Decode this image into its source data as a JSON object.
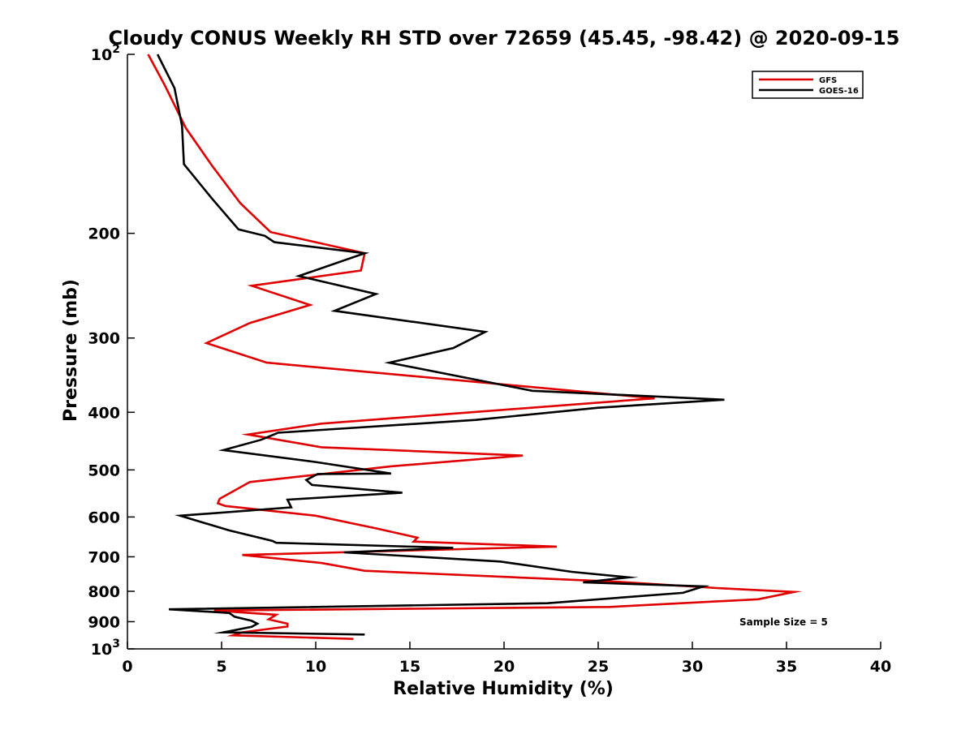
{
  "chart_data": {
    "type": "line",
    "title": "Cloudy CONUS Weekly RH STD over 72659 (45.45, -98.42) @ 2020-09-15",
    "xlabel": "Relative Humidity (%)",
    "ylabel": "Pressure (mb)",
    "xlim": [
      0,
      40
    ],
    "ylim": [
      100,
      1000
    ],
    "y_scale": "log",
    "y_reversed": true,
    "x_ticks": [
      0,
      5,
      10,
      15,
      20,
      25,
      30,
      35,
      40
    ],
    "x_tick_labels": [
      "0",
      "5",
      "10",
      "15",
      "20",
      "25",
      "30",
      "35",
      "40"
    ],
    "y_ticks": [
      100,
      200,
      300,
      400,
      500,
      600,
      700,
      800,
      900,
      1000
    ],
    "y_tick_labels": [
      {
        "base": "10",
        "exp": "2"
      },
      {
        "base": "200",
        "exp": ""
      },
      {
        "base": "300",
        "exp": ""
      },
      {
        "base": "400",
        "exp": ""
      },
      {
        "base": "500",
        "exp": ""
      },
      {
        "base": "600",
        "exp": ""
      },
      {
        "base": "700",
        "exp": ""
      },
      {
        "base": "800",
        "exp": ""
      },
      {
        "base": "900",
        "exp": ""
      },
      {
        "base": "10",
        "exp": "3"
      }
    ],
    "legend": {
      "position": "top-right",
      "entries": [
        "GFS",
        "GOES-16"
      ]
    },
    "annotation": "Sample Size = 5",
    "series": [
      {
        "name": "GFS",
        "color": "#e00000",
        "x": [
          1.1,
          2.0,
          3.1,
          4.5,
          6.0,
          7.6,
          12.6,
          12.4,
          6.6,
          9.7,
          6.5,
          4.2,
          7.4,
          28.0,
          10.3,
          6.4,
          10.3,
          21.0,
          14.0,
          6.5,
          4.9,
          4.8,
          5.2,
          10.0,
          13.2,
          15.4,
          15.2,
          22.8,
          6.1,
          10.3,
          12.6,
          26.0,
          31.3,
          35.4,
          33.5,
          25.6,
          4.6,
          7.9,
          7.5,
          8.5,
          8.5,
          6.1,
          5.6,
          12.0
        ],
        "y": [
          100,
          113,
          133,
          154,
          178,
          199,
          216,
          231,
          245,
          264,
          283,
          306,
          330,
          379,
          418,
          436,
          458,
          473,
          493,
          524,
          559,
          569,
          575,
          597,
          627,
          650,
          660,
          673,
          695,
          717,
          739,
          771,
          790,
          802,
          825,
          850,
          862,
          876,
          892,
          907,
          917,
          938,
          949,
          962
        ]
      },
      {
        "name": "GOES-16",
        "color": "#000000",
        "x": [
          1.6,
          2.5,
          2.9,
          3.0,
          4.5,
          5.9,
          7.3,
          7.8,
          12.6,
          9.1,
          13.2,
          11.0,
          19.0,
          17.3,
          13.9,
          21.5,
          31.7,
          25.0,
          18.5,
          8.0,
          7.1,
          5.1,
          10.0,
          14.0,
          10.1,
          9.5,
          9.8,
          14.6,
          8.5,
          8.7,
          2.8,
          5.4,
          7.7,
          7.9,
          17.3,
          11.5,
          19.8,
          23.6,
          26.6,
          24.2,
          30.6,
          29.5,
          22.3,
          2.2,
          5.4,
          5.7,
          6.6,
          6.9,
          6.6,
          5.1,
          12.6
        ],
        "y": [
          100,
          114,
          132,
          153,
          175,
          197,
          202,
          207,
          216,
          236,
          253,
          270,
          293,
          312,
          330,
          368,
          381,
          393,
          412,
          433,
          445,
          463,
          485,
          507,
          508,
          520,
          530,
          546,
          561,
          578,
          597,
          632,
          658,
          663,
          676,
          688,
          713,
          742,
          758,
          773,
          785,
          805,
          838,
          858,
          870,
          883,
          897,
          907,
          918,
          938,
          946
        ]
      }
    ]
  }
}
